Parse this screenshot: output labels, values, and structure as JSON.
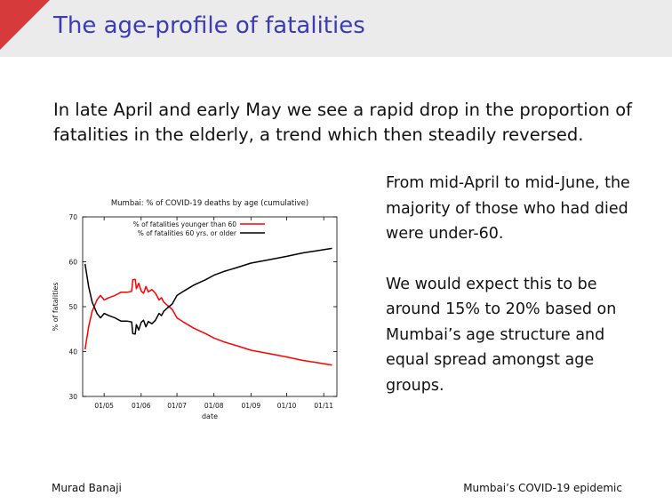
{
  "header": {
    "title": "The age-profile of fatalities"
  },
  "intro": "In late April and early May we see a rapid drop in the proportion of fatalities in the elderly, a trend which then steadily reversed.",
  "right_text": {
    "p1": "From mid-April to mid-June, the majority of those who had died were under-60.",
    "p2": "We would expect this to be around 15% to 20% based on Mumbai’s age structure and equal spread amongst age groups."
  },
  "footer": {
    "left": "Murad Banaji",
    "right": "Mumbai’s COVID-19 epidemic"
  },
  "colors": {
    "accent": "#d63a3a",
    "title": "#3b3bb4",
    "header_bg": "#ebebeb",
    "under60": "#ff0000",
    "over60": "#000000"
  },
  "chart_data": {
    "type": "line",
    "title": "Mumbai: % of COVID-19 deaths by age (cumulative)",
    "xlabel": "date",
    "ylabel": "% of fatalities",
    "ylim": [
      30,
      70
    ],
    "yticks": [
      30,
      40,
      50,
      60,
      70
    ],
    "xticks": [
      "01/05",
      "01/06",
      "01/07",
      "01/08",
      "01/09",
      "01/10",
      "01/11"
    ],
    "xlim": [
      "2020-04-13",
      "2020-11-12"
    ],
    "grid": false,
    "legend": "top",
    "series": [
      {
        "name": "% of fatalities younger than 60",
        "color": "#ff0000",
        "x": [
          "2020-04-15",
          "2020-04-18",
          "2020-04-21",
          "2020-04-25",
          "2020-04-28",
          "2020-05-01",
          "2020-05-05",
          "2020-05-10",
          "2020-05-15",
          "2020-05-20",
          "2020-05-24",
          "2020-05-25",
          "2020-05-27",
          "2020-05-28",
          "2020-05-30",
          "2020-06-01",
          "2020-06-03",
          "2020-06-05",
          "2020-06-07",
          "2020-06-10",
          "2020-06-13",
          "2020-06-16",
          "2020-06-18",
          "2020-06-20",
          "2020-06-23",
          "2020-06-27",
          "2020-07-01",
          "2020-07-07",
          "2020-07-15",
          "2020-07-25",
          "2020-08-01",
          "2020-08-10",
          "2020-08-20",
          "2020-09-01",
          "2020-09-15",
          "2020-10-01",
          "2020-10-15",
          "2020-10-25",
          "2020-11-08"
        ],
        "values": [
          40.5,
          45.5,
          49.0,
          51.5,
          52.5,
          51.5,
          52.0,
          52.5,
          53.2,
          53.2,
          53.4,
          56.0,
          56.1,
          54.0,
          55.2,
          53.5,
          53.0,
          54.5,
          53.3,
          53.8,
          53.0,
          51.5,
          52.0,
          51.0,
          50.3,
          49.4,
          47.5,
          46.5,
          45.2,
          44.0,
          43.0,
          42.1,
          41.3,
          40.3,
          39.6,
          38.8,
          38.0,
          37.6,
          37.0
        ]
      },
      {
        "name": "% of fatalities 60 yrs. or older",
        "color": "#000000",
        "x": [
          "2020-04-15",
          "2020-04-18",
          "2020-04-21",
          "2020-04-25",
          "2020-04-28",
          "2020-05-01",
          "2020-05-05",
          "2020-05-10",
          "2020-05-15",
          "2020-05-20",
          "2020-05-24",
          "2020-05-25",
          "2020-05-27",
          "2020-05-28",
          "2020-05-30",
          "2020-06-01",
          "2020-06-03",
          "2020-06-05",
          "2020-06-07",
          "2020-06-10",
          "2020-06-13",
          "2020-06-16",
          "2020-06-18",
          "2020-06-20",
          "2020-06-23",
          "2020-06-27",
          "2020-07-01",
          "2020-07-07",
          "2020-07-15",
          "2020-07-25",
          "2020-08-01",
          "2020-08-10",
          "2020-08-20",
          "2020-09-01",
          "2020-09-15",
          "2020-10-01",
          "2020-10-15",
          "2020-10-25",
          "2020-11-08"
        ],
        "values": [
          59.5,
          54.5,
          51.0,
          48.5,
          47.5,
          48.5,
          48.0,
          47.5,
          46.8,
          46.8,
          46.6,
          44.0,
          43.9,
          46.0,
          44.8,
          46.5,
          47.0,
          45.5,
          46.7,
          46.2,
          47.0,
          48.5,
          48.0,
          49.0,
          49.7,
          50.6,
          52.5,
          53.5,
          54.8,
          56.0,
          57.0,
          57.9,
          58.7,
          59.7,
          60.4,
          61.2,
          62.0,
          62.4,
          63.0
        ]
      }
    ]
  }
}
